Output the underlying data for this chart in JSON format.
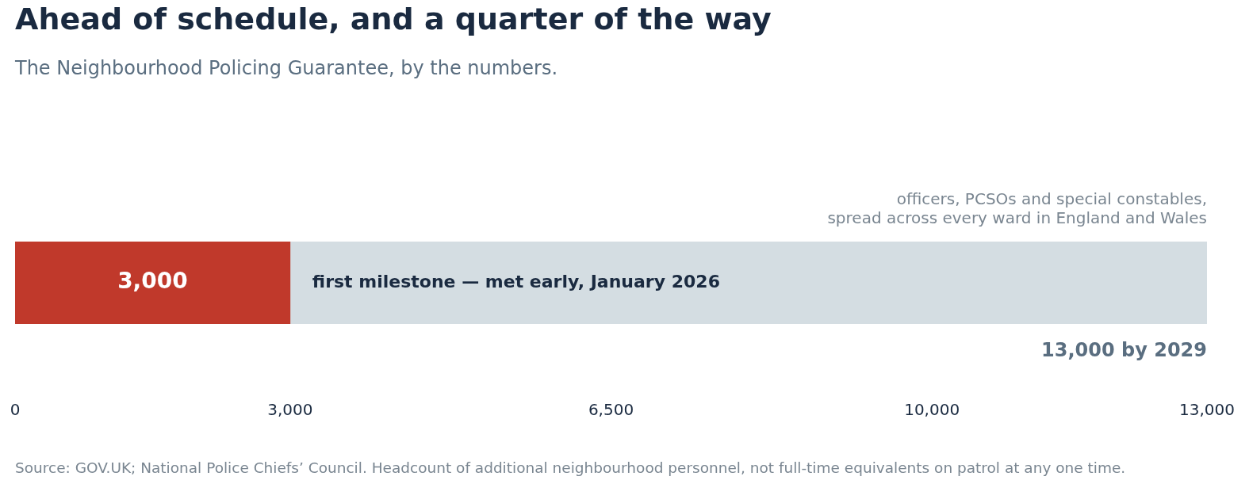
{
  "chart_data": {
    "type": "bar",
    "orientation": "horizontal",
    "stacked": true,
    "title": "Ahead of schedule, and a quarter of the way",
    "subtitle": "The Neighbourhood Policing Guarantee, by the numbers.",
    "categories": [
      null
    ],
    "series": [
      {
        "color": "#c0392b",
        "values": [
          3000
        ],
        "value_labels": [
          "3,000"
        ]
      },
      {
        "color": "#d4dde2",
        "values": [
          10000
        ]
      }
    ],
    "xlim": [
      0,
      13000
    ],
    "xticks": [
      0,
      {
        "value": 3000,
        "label": "3,000"
      },
      {
        "value": 6500,
        "label": "6,500"
      },
      {
        "value": 10000,
        "label": "10,000"
      },
      {
        "value": 13000,
        "label": "13,000"
      }
    ],
    "tick_labels": "x",
    "grid": false,
    "legend": false,
    "annotations": [
      "first milestone — met early, January 2026",
      "officers, PCSOs and special constables,",
      "spread across every ward in England and Wales",
      "13,000 by 2029",
      "Source: GOV.UK; National Police Chiefs’ Council. Headcount of additional neighbourhood personnel, not full-time equivalents on patrol at any one time."
    ]
  }
}
